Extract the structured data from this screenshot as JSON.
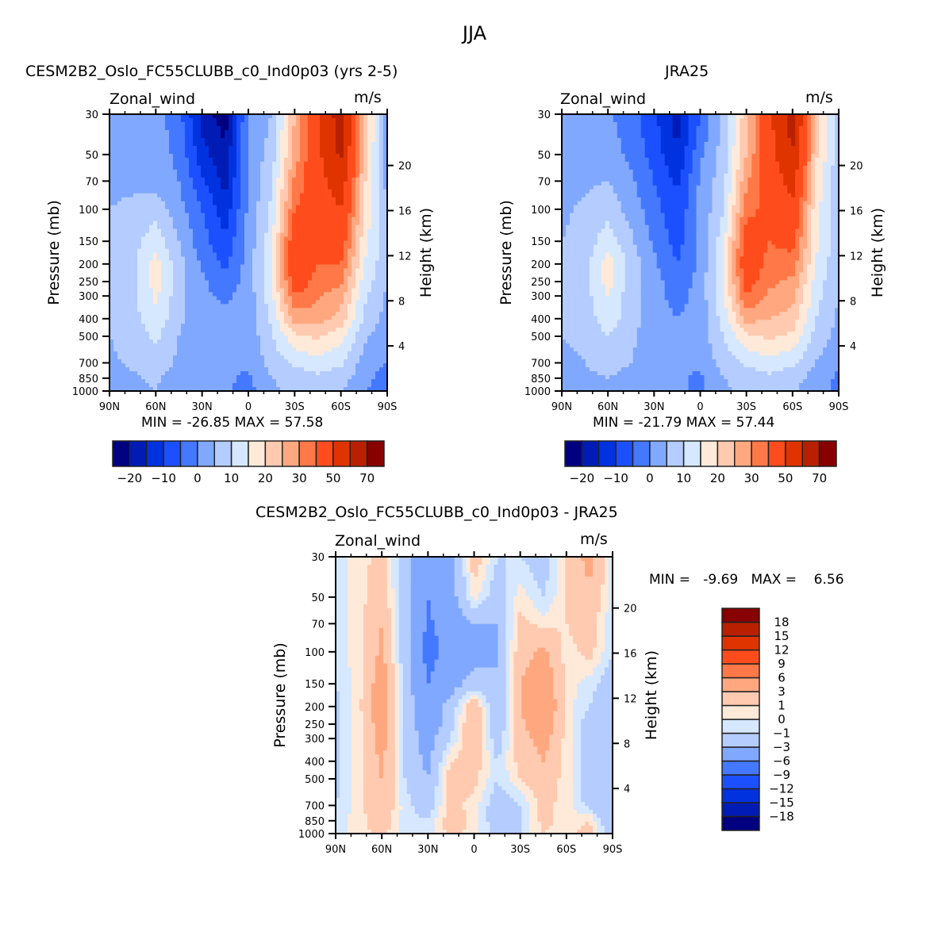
{
  "figure": {
    "title": "JJA"
  },
  "chart_data": [
    {
      "type": "heatmap",
      "panel": "model",
      "title": "CESM2B2_Oslo_FC55CLUBB_c0_Ind0p03 (yrs 2-5)",
      "left_string": "Zonal_wind",
      "right_string": "m/s",
      "xlabel": "",
      "ylabel": "Pressure (mb)",
      "ylabel_right": "Height (km)",
      "x_ticks": [
        "90N",
        "60N",
        "30N",
        "0",
        "30S",
        "60S",
        "90S"
      ],
      "y_ticks": [
        "30",
        "50",
        "70",
        "100",
        "150",
        "200",
        "250",
        "300",
        "400",
        "500",
        "700",
        "850",
        "1000"
      ],
      "y2_ticks": [
        "20",
        "16",
        "12",
        "8",
        "4"
      ],
      "stats": "MIN = -26.85   MAX =  57.58",
      "min": -26.85,
      "max": 57.58,
      "colorbar": {
        "orientation": "horizontal",
        "levels": [
          -25,
          -20,
          -15,
          -10,
          -5,
          0,
          5,
          10,
          15,
          20,
          25,
          30,
          40,
          50,
          60
        ],
        "labels": [
          "-20",
          "-10",
          "0",
          "10",
          "20",
          "30",
          "50",
          "70"
        ],
        "colors": [
          "#000080",
          "#001cb4",
          "#0032e0",
          "#1c50ff",
          "#4478ff",
          "#80a8ff",
          "#b4ccff",
          "#d6e8ff",
          "#ffeada",
          "#ffcab0",
          "#ffa880",
          "#ff7848",
          "#ff4c1c",
          "#e03400",
          "#b82000",
          "#880000"
        ]
      },
      "lat": [
        90,
        75,
        60,
        45,
        30,
        15,
        0,
        -15,
        -30,
        -45,
        -60,
        -75,
        -90
      ],
      "pressure": [
        30,
        50,
        70,
        100,
        150,
        200,
        250,
        300,
        400,
        500,
        700,
        850,
        1000
      ],
      "values": [
        [
          -2,
          -2,
          -3,
          -8,
          -22,
          -28,
          -4,
          0,
          20,
          40,
          55,
          20,
          -3
        ],
        [
          -2,
          -2,
          -3,
          -6,
          -18,
          -24,
          -4,
          2,
          22,
          38,
          52,
          18,
          -3
        ],
        [
          -1,
          -1,
          -3,
          -5,
          -14,
          -22,
          -4,
          4,
          26,
          36,
          46,
          16,
          -2
        ],
        [
          0,
          1,
          3,
          -3,
          -10,
          -18,
          -4,
          6,
          30,
          34,
          40,
          14,
          0
        ],
        [
          1,
          3,
          8,
          0,
          -8,
          -14,
          -3,
          8,
          36,
          32,
          34,
          12,
          1
        ],
        [
          2,
          4,
          12,
          2,
          -6,
          -11,
          -3,
          10,
          38,
          30,
          30,
          10,
          1
        ],
        [
          2,
          4,
          12,
          2,
          -4,
          -8,
          -3,
          10,
          34,
          28,
          26,
          8,
          0
        ],
        [
          2,
          4,
          11,
          2,
          -4,
          -6,
          -3,
          8,
          30,
          26,
          22,
          6,
          -1
        ],
        [
          1,
          3,
          9,
          1,
          -3,
          -4,
          -3,
          6,
          22,
          22,
          18,
          4,
          -2
        ],
        [
          0,
          2,
          6,
          0,
          -3,
          -3,
          -3,
          4,
          14,
          16,
          12,
          1,
          -3
        ],
        [
          -1,
          1,
          3,
          -1,
          -3,
          -4,
          -4,
          2,
          6,
          8,
          6,
          -2,
          -5
        ],
        [
          -2,
          -1,
          1,
          -3,
          -4,
          -4,
          -6,
          0,
          2,
          4,
          2,
          -3,
          -8
        ],
        [
          -3,
          -2,
          0,
          -3,
          -5,
          -4,
          -7,
          -1,
          1,
          2,
          0,
          -4,
          -10
        ]
      ]
    },
    {
      "type": "heatmap",
      "panel": "obs",
      "title": "JRA25",
      "left_string": "Zonal_wind",
      "right_string": "m/s",
      "xlabel": "",
      "ylabel": "Pressure (mb)",
      "ylabel_right": "Height (km)",
      "x_ticks": [
        "90N",
        "60N",
        "30N",
        "0",
        "30S",
        "60S",
        "90S"
      ],
      "y_ticks": [
        "30",
        "50",
        "70",
        "100",
        "150",
        "200",
        "250",
        "300",
        "400",
        "500",
        "700",
        "850",
        "1000"
      ],
      "y2_ticks": [
        "20",
        "16",
        "12",
        "8",
        "4"
      ],
      "stats": "MIN = -21.79   MAX =  57.44",
      "min": -21.79,
      "max": 57.44,
      "colorbar": {
        "orientation": "horizontal",
        "levels": [
          -25,
          -20,
          -15,
          -10,
          -5,
          0,
          5,
          10,
          15,
          20,
          25,
          30,
          40,
          50,
          60
        ],
        "labels": [
          "-20",
          "-10",
          "0",
          "10",
          "20",
          "30",
          "50",
          "70"
        ],
        "colors": [
          "#000080",
          "#001cb4",
          "#0032e0",
          "#1c50ff",
          "#4478ff",
          "#80a8ff",
          "#b4ccff",
          "#d6e8ff",
          "#ffeada",
          "#ffcab0",
          "#ffa880",
          "#ff7848",
          "#ff4c1c",
          "#e03400",
          "#b82000",
          "#880000"
        ]
      },
      "lat": [
        90,
        75,
        60,
        45,
        30,
        15,
        0,
        -15,
        -30,
        -45,
        -60,
        -75,
        -90
      ],
      "pressure": [
        30,
        50,
        70,
        100,
        150,
        200,
        250,
        300,
        400,
        500,
        700,
        850,
        1000
      ],
      "values": [
        [
          -3,
          -3,
          -4,
          -8,
          -14,
          -22,
          -10,
          2,
          18,
          38,
          55,
          18,
          2
        ],
        [
          -3,
          -3,
          -3,
          -6,
          -12,
          -20,
          -6,
          2,
          20,
          36,
          50,
          16,
          2
        ],
        [
          -2,
          -1,
          0,
          -4,
          -10,
          -16,
          -4,
          3,
          24,
          34,
          44,
          14,
          1
        ],
        [
          -1,
          1,
          3,
          -2,
          -8,
          -14,
          -4,
          5,
          28,
          32,
          38,
          12,
          1
        ],
        [
          0,
          2,
          8,
          1,
          -6,
          -12,
          -4,
          8,
          34,
          30,
          32,
          11,
          1
        ],
        [
          1,
          3,
          13,
          3,
          -4,
          -10,
          -4,
          10,
          36,
          28,
          28,
          10,
          1
        ],
        [
          1,
          3,
          12,
          3,
          -3,
          -8,
          -3,
          10,
          33,
          26,
          24,
          8,
          0
        ],
        [
          1,
          3,
          10,
          2,
          -3,
          -7,
          -3,
          9,
          30,
          24,
          22,
          7,
          0
        ],
        [
          1,
          2,
          8,
          2,
          -3,
          -5,
          -3,
          7,
          22,
          20,
          18,
          5,
          -1
        ],
        [
          0,
          1,
          5,
          1,
          -3,
          -4,
          -3,
          5,
          14,
          16,
          14,
          3,
          -2
        ],
        [
          -1,
          0,
          2,
          0,
          -3,
          -4,
          -4,
          2,
          6,
          8,
          6,
          0,
          -4
        ],
        [
          -2,
          -1,
          0,
          -2,
          -4,
          -4,
          -6,
          0,
          2,
          4,
          2,
          -2,
          -6
        ],
        [
          -3,
          -2,
          0,
          -3,
          -4,
          -4,
          -6,
          -1,
          1,
          2,
          1,
          -3,
          -6
        ]
      ]
    },
    {
      "type": "heatmap",
      "panel": "difference",
      "title": "CESM2B2_Oslo_FC55CLUBB_c0_Ind0p03 - JRA25",
      "left_string": "Zonal_wind",
      "right_string": "m/s",
      "xlabel": "",
      "ylabel": "Pressure (mb)",
      "ylabel_right": "Height (km)",
      "x_ticks": [
        "90N",
        "60N",
        "30N",
        "0",
        "30S",
        "60S",
        "90S"
      ],
      "y_ticks": [
        "30",
        "50",
        "70",
        "100",
        "150",
        "200",
        "250",
        "300",
        "400",
        "500",
        "700",
        "850",
        "1000"
      ],
      "y2_ticks": [
        "20",
        "16",
        "12",
        "8",
        "4"
      ],
      "stats": "MIN =   -9.69   MAX =    6.56",
      "min": -9.69,
      "max": 6.56,
      "colorbar": {
        "orientation": "vertical",
        "levels": [
          -18,
          -15,
          -12,
          -9,
          -6,
          -3,
          -1,
          0,
          1,
          3,
          6,
          9,
          12,
          15,
          18
        ],
        "labels": [
          "-18",
          "-15",
          "-12",
          "-9",
          "-6",
          "-3",
          "-1",
          "0",
          "1",
          "3",
          "6",
          "9",
          "12",
          "15",
          "18"
        ],
        "colors": [
          "#000080",
          "#001cb4",
          "#0032e0",
          "#1c50ff",
          "#4478ff",
          "#80a8ff",
          "#b4ccff",
          "#d6e8ff",
          "#ffeada",
          "#ffcab0",
          "#ffa880",
          "#ff7848",
          "#ff4c1c",
          "#e03400",
          "#b82000",
          "#880000"
        ]
      },
      "lat": [
        90,
        75,
        60,
        45,
        30,
        15,
        0,
        -15,
        -30,
        -45,
        -60,
        -75,
        -90
      ],
      "pressure": [
        30,
        50,
        70,
        100,
        150,
        200,
        250,
        300,
        400,
        500,
        700,
        850,
        1000
      ],
      "values": [
        [
          -0.5,
          0.5,
          1.5,
          -2,
          -5,
          -4,
          2,
          -1,
          -1,
          -2,
          1,
          4,
          -0.5
        ],
        [
          -0.5,
          0.5,
          2,
          -2,
          -6,
          -4,
          0.5,
          -2,
          0.5,
          -1,
          1,
          2.5,
          -0.5
        ],
        [
          -0.5,
          0.5,
          3,
          -2,
          -6.5,
          -4.5,
          -3,
          -3,
          1.5,
          0.5,
          1,
          2,
          -1
        ],
        [
          -0.5,
          0.5,
          3.5,
          -2,
          -7,
          -5,
          -4,
          -3,
          2,
          3.5,
          0.5,
          1.5,
          -1
        ],
        [
          -1,
          0.5,
          4.5,
          -2,
          -6,
          -4,
          -2,
          -3,
          3,
          5,
          0.5,
          -0.5,
          -2
        ],
        [
          -1.5,
          0.5,
          5,
          -1.5,
          -5,
          -2,
          2.5,
          -3,
          3,
          6,
          0.5,
          -1,
          -2
        ],
        [
          -1.5,
          0.5,
          4.5,
          -1.5,
          -5,
          -1.5,
          3,
          -2.5,
          2.5,
          5,
          0.5,
          -2,
          -2
        ],
        [
          -1.5,
          0.5,
          4,
          -1.5,
          -4,
          -1,
          2.5,
          -2,
          2,
          4,
          0.5,
          -2,
          -2
        ],
        [
          -1.5,
          0.5,
          3.5,
          -1.5,
          -3.5,
          1,
          2,
          -1,
          1.5,
          3,
          0.5,
          -2,
          -2
        ],
        [
          -1.5,
          0.5,
          3,
          -1,
          -3,
          2,
          1.5,
          -1,
          1,
          2,
          0.5,
          -2,
          -2
        ],
        [
          -1,
          0.5,
          2.5,
          -0.5,
          -2,
          1.5,
          0.5,
          -2,
          -1,
          1.5,
          0.5,
          -1.5,
          -3
        ],
        [
          -0.5,
          0.5,
          2,
          -0.5,
          -1,
          2,
          0.5,
          -2,
          -1,
          1.5,
          0.5,
          1,
          -3
        ],
        [
          -0.5,
          0.5,
          1.5,
          -0.5,
          -0.5,
          1.5,
          0.5,
          -1.5,
          -1,
          1,
          0.5,
          1.5,
          -2
        ]
      ]
    }
  ]
}
